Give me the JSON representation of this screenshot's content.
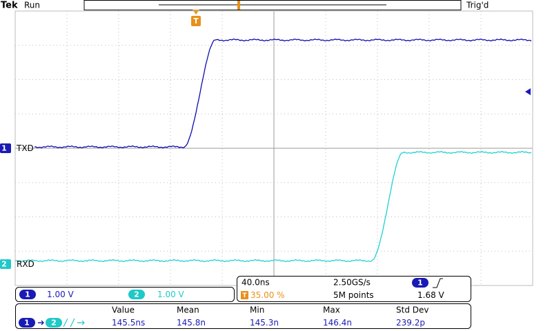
{
  "header": {
    "brand": "Tek",
    "status": "Run",
    "trigger_state": "Trig'd",
    "trigger_marker": "T"
  },
  "channels": [
    {
      "number": "1",
      "label": "TXD",
      "scale": "1.00 V"
    },
    {
      "number": "2",
      "label": "RXD",
      "scale": "1.00 V"
    }
  ],
  "timebase": {
    "horizontal_scale": "40.0ns",
    "sample_rate": "2.50GS/s",
    "trigger_position": "35.00 %",
    "record_length": "5M points",
    "trigger_source": "1",
    "trigger_level": "1.68 V"
  },
  "measurement": {
    "headers": [
      "Value",
      "Mean",
      "Min",
      "Max",
      "Std Dev"
    ],
    "source": "1",
    "target": "2",
    "values": [
      "145.5ns",
      "145.8n",
      "145.3n",
      "146.4n",
      "239.2p"
    ]
  }
}
